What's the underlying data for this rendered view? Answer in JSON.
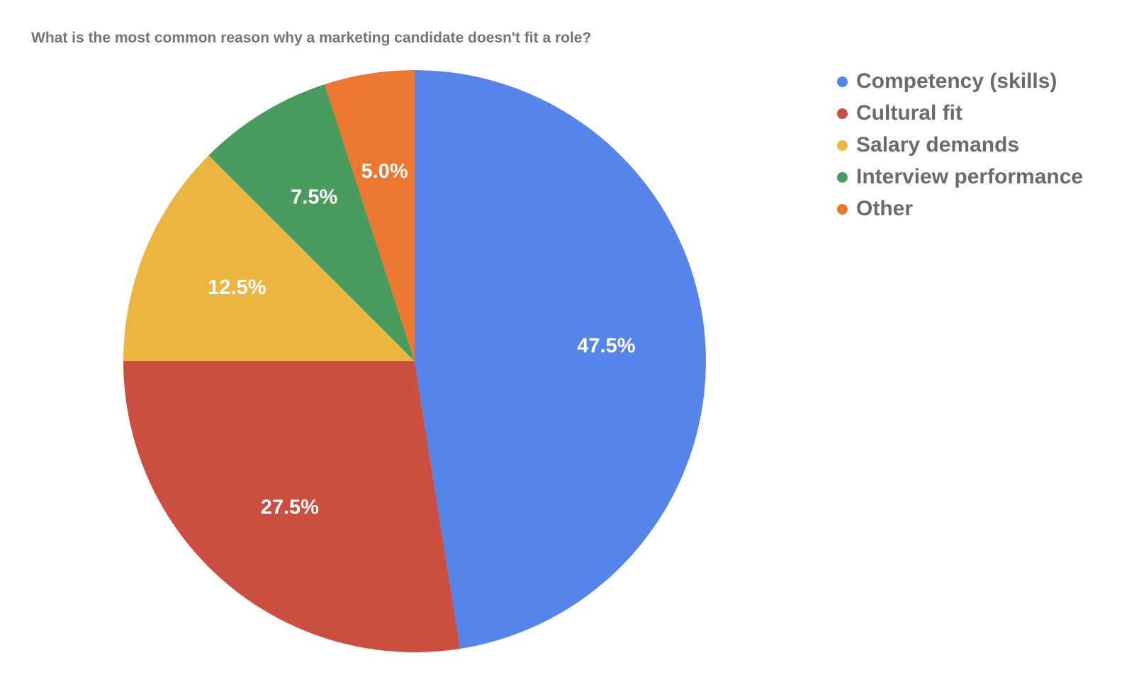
{
  "chart_data": {
    "type": "pie",
    "title": "What is the most common reason why a marketing candidate doesn't fit a role?",
    "categories": [
      "Competency (skills)",
      "Cultural fit",
      "Salary demands",
      "Interview performance",
      "Other"
    ],
    "values": [
      47.5,
      27.5,
      12.5,
      7.5,
      5.0
    ],
    "data_labels": [
      "47.5%",
      "27.5%",
      "12.5%",
      "7.5%",
      "5.0%"
    ],
    "colors": [
      "#5585EA",
      "#CB4F40",
      "#EAB63F",
      "#4A9B5E",
      "#EC772F"
    ],
    "start_angle": "12 o'clock",
    "direction": "clockwise",
    "legend_position": "right"
  }
}
